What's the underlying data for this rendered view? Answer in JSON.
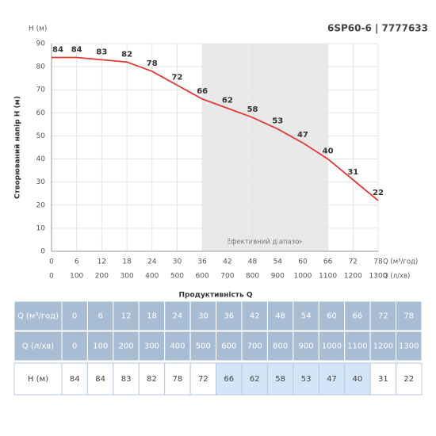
{
  "chart_data": {
    "type": "line",
    "title": "6SP60-6 | 7777633",
    "y_unit": "Н (м)",
    "y_label": "Створюваний напір Н (м)",
    "x_unit": "Q (м³/год)",
    "x2_unit": "Q (л/хв)",
    "x_label": "Продуктивність Q",
    "x": [
      0,
      6,
      12,
      18,
      24,
      30,
      36,
      42,
      48,
      54,
      60,
      66,
      72,
      78
    ],
    "series": [
      {
        "color": "#e53935",
        "values": [
          84,
          84,
          83,
          82,
          78,
          72,
          66,
          62,
          58,
          53,
          47,
          40,
          31,
          22
        ]
      }
    ],
    "xlim": [
      0,
      78
    ],
    "xticks": [
      0,
      6,
      12,
      18,
      24,
      30,
      36,
      42,
      48,
      54,
      60,
      66,
      72,
      78
    ],
    "x2lim": [
      0,
      1300
    ],
    "x2ticks": [
      0,
      100,
      200,
      300,
      400,
      500,
      600,
      700,
      800,
      900,
      1000,
      1100,
      1200,
      1300
    ],
    "ylim": [
      0,
      90
    ],
    "yticks": [
      0,
      10,
      20,
      30,
      40,
      50,
      60,
      70,
      80,
      90
    ],
    "grid": true,
    "highlight": {
      "range": [
        36,
        66
      ],
      "label": "Ефективний діапазон"
    }
  },
  "table": {
    "rows": [
      [
        "Q (м³/год)",
        0,
        6,
        12,
        18,
        24,
        30,
        36,
        42,
        48,
        54,
        60,
        66,
        72,
        78
      ],
      [
        "Q (л/хв)",
        0,
        100,
        200,
        300,
        400,
        500,
        600,
        700,
        800,
        900,
        1000,
        1100,
        1200,
        1300
      ],
      [
        "Н (м)",
        84,
        84,
        83,
        82,
        78,
        72,
        66,
        62,
        58,
        53,
        47,
        40,
        31,
        22
      ]
    ]
  }
}
